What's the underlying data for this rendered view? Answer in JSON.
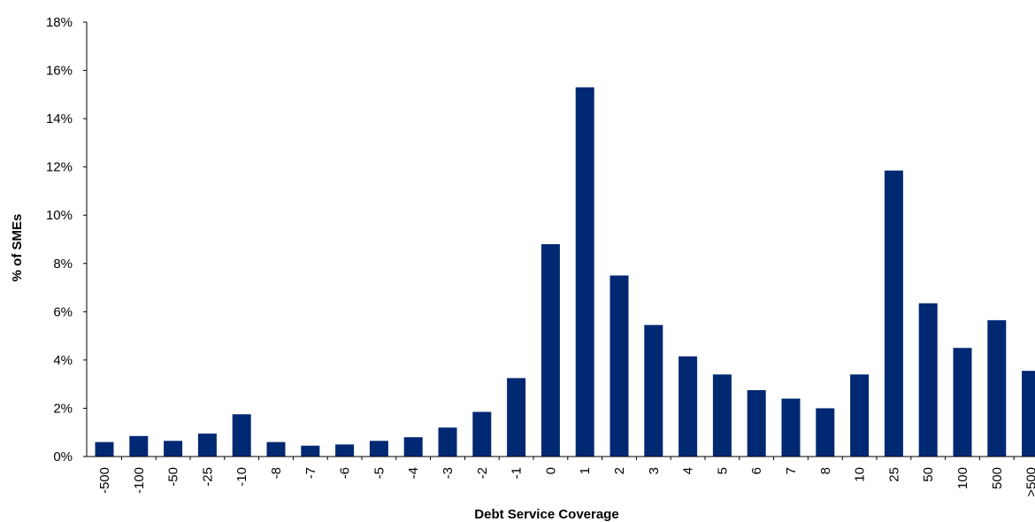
{
  "chart_data": {
    "type": "bar",
    "title": "",
    "xlabel": "Debt Service Coverage",
    "ylabel": "% of SMEs",
    "ylim": [
      0,
      18
    ],
    "yticks": [
      0,
      2,
      4,
      6,
      8,
      10,
      12,
      14,
      16,
      18
    ],
    "ytick_format": "%",
    "grid": false,
    "legend": "none",
    "bar_color": "#002873",
    "categories": [
      "-500",
      "-100",
      "-50",
      "-25",
      "-10",
      "-8",
      "-7",
      "-6",
      "-5",
      "-4",
      "-3",
      "-2",
      "-1",
      "0",
      "1",
      "2",
      "3",
      "4",
      "5",
      "6",
      "7",
      "8",
      "10",
      "25",
      "50",
      "100",
      "500",
      ">500"
    ],
    "values": [
      0.6,
      0.85,
      0.65,
      0.95,
      1.75,
      0.6,
      0.45,
      0.5,
      0.65,
      0.8,
      1.2,
      1.85,
      3.25,
      8.8,
      15.3,
      7.5,
      5.45,
      4.15,
      3.4,
      2.75,
      2.4,
      2.0,
      3.4,
      11.85,
      6.35,
      4.5,
      5.65,
      3.55
    ]
  }
}
